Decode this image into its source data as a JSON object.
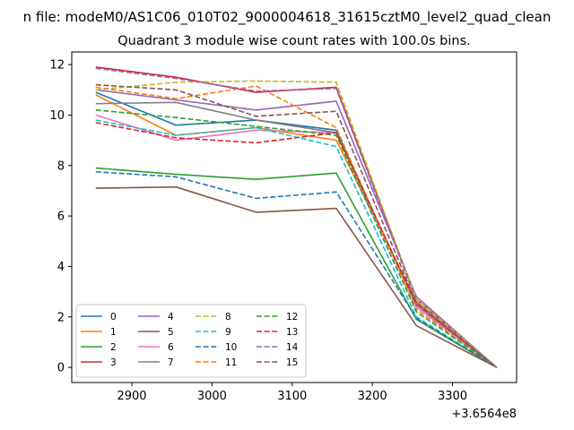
{
  "chart_data": {
    "type": "line",
    "suptitle": "n file: modeM0/AS1C06_010T02_9000004618_31615cztM0_level2_quad_clean",
    "title": "Quadrant 3 module wise count rates with 100.0s bins.",
    "xlabel": "",
    "ylabel": "",
    "x_offset_label": "+3.6564e8",
    "x": [
      2855,
      2955,
      3055,
      3155,
      3255,
      3355
    ],
    "xlim": [
      2825,
      3380
    ],
    "ylim": [
      -0.6,
      12.5
    ],
    "x_ticks": [
      2900,
      3000,
      3100,
      3200,
      3300
    ],
    "y_ticks": [
      0,
      2,
      4,
      6,
      8,
      10,
      12
    ],
    "grid": false,
    "legend_position": "lower-left",
    "series": [
      {
        "name": "0",
        "color": "#1f77b4",
        "dash": "solid",
        "values": [
          10.9,
          9.6,
          9.8,
          9.4,
          2.4,
          0.0
        ]
      },
      {
        "name": "1",
        "color": "#ff7f0e",
        "dash": "solid",
        "values": [
          10.8,
          9.2,
          9.5,
          9.0,
          2.6,
          0.0
        ]
      },
      {
        "name": "2",
        "color": "#2ca02c",
        "dash": "solid",
        "values": [
          7.9,
          7.65,
          7.45,
          7.7,
          1.9,
          0.0
        ]
      },
      {
        "name": "3",
        "color": "#d62728",
        "dash": "solid",
        "values": [
          11.9,
          11.5,
          10.9,
          11.1,
          2.7,
          0.0
        ]
      },
      {
        "name": "4",
        "color": "#9467bd",
        "dash": "solid",
        "values": [
          11.0,
          10.6,
          10.2,
          10.55,
          2.8,
          0.0
        ]
      },
      {
        "name": "5",
        "color": "#8c564b",
        "dash": "solid",
        "values": [
          7.1,
          7.15,
          6.15,
          6.3,
          1.65,
          0.0
        ]
      },
      {
        "name": "6",
        "color": "#e377c2",
        "dash": "solid",
        "values": [
          10.0,
          9.0,
          9.4,
          9.3,
          2.4,
          0.0
        ]
      },
      {
        "name": "7",
        "color": "#7f7f7f",
        "dash": "solid",
        "values": [
          10.45,
          10.5,
          9.8,
          9.3,
          2.5,
          0.0
        ]
      },
      {
        "name": "8",
        "color": "#bcbd22",
        "dash": "dashed",
        "values": [
          11.0,
          11.3,
          11.35,
          11.3,
          2.7,
          0.0
        ]
      },
      {
        "name": "9",
        "color": "#17becf",
        "dash": "dashed",
        "values": [
          9.8,
          9.2,
          9.5,
          8.75,
          2.0,
          0.0
        ]
      },
      {
        "name": "10",
        "color": "#1f77b4",
        "dash": "dashed",
        "values": [
          7.75,
          7.55,
          6.7,
          6.95,
          1.95,
          0.0
        ]
      },
      {
        "name": "11",
        "color": "#ff7f0e",
        "dash": "dashed",
        "values": [
          11.1,
          10.65,
          11.15,
          9.5,
          2.3,
          0.0
        ]
      },
      {
        "name": "12",
        "color": "#2ca02c",
        "dash": "dashed",
        "values": [
          10.2,
          9.9,
          9.55,
          9.2,
          2.2,
          0.0
        ]
      },
      {
        "name": "13",
        "color": "#d62728",
        "dash": "dashed",
        "values": [
          9.7,
          9.1,
          8.9,
          9.3,
          2.5,
          0.0
        ]
      },
      {
        "name": "14",
        "color": "#9467bd",
        "dash": "dashed",
        "values": [
          11.85,
          11.45,
          10.95,
          11.05,
          2.6,
          0.0
        ]
      },
      {
        "name": "15",
        "color": "#8c564b",
        "dash": "dashed",
        "values": [
          11.2,
          11.0,
          9.95,
          10.15,
          2.55,
          0.0
        ]
      }
    ]
  }
}
